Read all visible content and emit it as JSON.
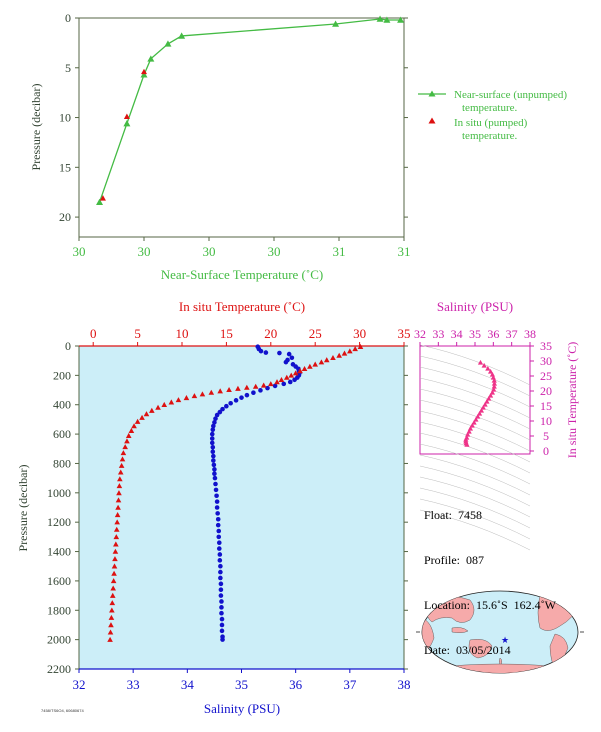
{
  "colors": {
    "green": "#44bb44",
    "red": "#dd1111",
    "blue": "#1111cc",
    "magenta": "#cc22aa",
    "pink": "#ee3388",
    "ocean": "#cceef8",
    "land": "#f6aaaa",
    "axis": "#556644"
  },
  "chart_data": [
    {
      "id": "near-surface",
      "type": "line",
      "xlabel": "Near-Surface Temperature (˚C)",
      "ylabel": "Pressure (decibar)",
      "xticks": [
        "30",
        "30",
        "30",
        "30",
        "31",
        "31"
      ],
      "xlim": [
        29.9,
        30.85
      ],
      "yticks": [
        0,
        5,
        10,
        15,
        20
      ],
      "ylim": [
        0,
        22
      ],
      "y_inverted": true,
      "series": [
        {
          "name": "Near-surface (unpumped) temperature.",
          "marker": "triangle",
          "points": [
            [
              29.96,
              18.5
            ],
            [
              30.04,
              10.6
            ],
            [
              30.09,
              5.7
            ],
            [
              30.11,
              4.1
            ],
            [
              30.16,
              2.6
            ],
            [
              30.2,
              1.8
            ],
            [
              30.65,
              0.6
            ],
            [
              30.78,
              0.1
            ],
            [
              30.8,
              0.2
            ],
            [
              30.84,
              0.2
            ]
          ]
        },
        {
          "name": "In situ (pumped) temperature.",
          "marker": "triangle",
          "points": [
            [
              29.97,
              18.1
            ],
            [
              30.04,
              9.9
            ],
            [
              30.09,
              5.4
            ]
          ]
        }
      ]
    },
    {
      "id": "profile",
      "type": "scatter",
      "top_xlabel": "In situ Temperature (˚C)",
      "bottom_xlabel": "Salinity (PSU)",
      "ylabel": "Pressure (decibar)",
      "temp_ticks": [
        0,
        5,
        10,
        15,
        20,
        25,
        30,
        35
      ],
      "temp_lim": [
        -1.6,
        35
      ],
      "sal_ticks": [
        32,
        33,
        34,
        35,
        36,
        37,
        38
      ],
      "sal_lim": [
        32,
        38
      ],
      "y_ticks": [
        0,
        200,
        400,
        600,
        800,
        1000,
        1200,
        1400,
        1600,
        1800,
        2000,
        2200
      ],
      "ylim": [
        0,
        2200
      ],
      "y_inverted": true,
      "series": [
        {
          "name": "In situ Temperature",
          "marker": "triangle",
          "points": [
            [
              30.1,
              5
            ],
            [
              29.5,
              20
            ],
            [
              28.9,
              35
            ],
            [
              28.3,
              50
            ],
            [
              27.7,
              65
            ],
            [
              27.0,
              80
            ],
            [
              26.3,
              95
            ],
            [
              25.7,
              110
            ],
            [
              25.0,
              125
            ],
            [
              24.4,
              140
            ],
            [
              23.8,
              155
            ],
            [
              23.3,
              170
            ],
            [
              22.8,
              185
            ],
            [
              22.3,
              200
            ],
            [
              21.8,
              215
            ],
            [
              21.2,
              230
            ],
            [
              20.7,
              245
            ],
            [
              20.0,
              258
            ],
            [
              19.2,
              268
            ],
            [
              18.3,
              276
            ],
            [
              17.3,
              283
            ],
            [
              16.3,
              290
            ],
            [
              15.3,
              298
            ],
            [
              14.3,
              307
            ],
            [
              13.3,
              317
            ],
            [
              12.3,
              328
            ],
            [
              11.4,
              340
            ],
            [
              10.5,
              353
            ],
            [
              9.6,
              367
            ],
            [
              8.8,
              383
            ],
            [
              8.0,
              400
            ],
            [
              7.3,
              419
            ],
            [
              6.6,
              440
            ],
            [
              6.0,
              463
            ],
            [
              5.5,
              488
            ],
            [
              5.0,
              515
            ],
            [
              4.6,
              545
            ],
            [
              4.3,
              577
            ],
            [
              4.0,
              611
            ],
            [
              3.8,
              648
            ],
            [
              3.6,
              687
            ],
            [
              3.4,
              728
            ],
            [
              3.3,
              771
            ],
            [
              3.2,
              815
            ],
            [
              3.1,
              860
            ],
            [
              3.0,
              906
            ],
            [
              2.95,
              953
            ],
            [
              2.9,
              1001
            ],
            [
              2.85,
              1050
            ],
            [
              2.8,
              1100
            ],
            [
              2.75,
              1150
            ],
            [
              2.7,
              1200
            ],
            [
              2.65,
              1250
            ],
            [
              2.6,
              1300
            ],
            [
              2.55,
              1350
            ],
            [
              2.5,
              1400
            ],
            [
              2.45,
              1450
            ],
            [
              2.4,
              1500
            ],
            [
              2.35,
              1550
            ],
            [
              2.3,
              1600
            ],
            [
              2.25,
              1650
            ],
            [
              2.2,
              1700
            ],
            [
              2.15,
              1750
            ],
            [
              2.1,
              1800
            ],
            [
              2.05,
              1850
            ],
            [
              2.0,
              1900
            ],
            [
              1.95,
              1950
            ],
            [
              1.9,
              2000
            ]
          ]
        },
        {
          "name": "Salinity",
          "marker": "circle",
          "points": [
            [
              35.3,
              5
            ],
            [
              35.32,
              20
            ],
            [
              35.36,
              35
            ],
            [
              35.45,
              45
            ],
            [
              35.7,
              48
            ],
            [
              35.88,
              55
            ],
            [
              35.93,
              80
            ],
            [
              35.85,
              95
            ],
            [
              35.82,
              110
            ],
            [
              35.95,
              125
            ],
            [
              36.0,
              140
            ],
            [
              36.05,
              155
            ],
            [
              36.06,
              170
            ],
            [
              36.07,
              185
            ],
            [
              36.06,
              200
            ],
            [
              36.03,
              215
            ],
            [
              35.98,
              230
            ],
            [
              35.9,
              245
            ],
            [
              35.78,
              258
            ],
            [
              35.62,
              272
            ],
            [
              35.48,
              287
            ],
            [
              35.35,
              302
            ],
            [
              35.22,
              318
            ],
            [
              35.1,
              335
            ],
            [
              35.0,
              352
            ],
            [
              34.9,
              370
            ],
            [
              34.8,
              390
            ],
            [
              34.72,
              410
            ],
            [
              34.65,
              430
            ],
            [
              34.6,
              450
            ],
            [
              34.55,
              470
            ],
            [
              34.52,
              495
            ],
            [
              34.5,
              520
            ],
            [
              34.48,
              545
            ],
            [
              34.47,
              570
            ],
            [
              34.46,
              600
            ],
            [
              34.46,
              630
            ],
            [
              34.46,
              660
            ],
            [
              34.47,
              690
            ],
            [
              34.47,
              720
            ],
            [
              34.48,
              750
            ],
            [
              34.48,
              780
            ],
            [
              34.49,
              810
            ],
            [
              34.5,
              840
            ],
            [
              34.5,
              870
            ],
            [
              34.51,
              900
            ],
            [
              34.52,
              940
            ],
            [
              34.53,
              980
            ],
            [
              34.54,
              1020
            ],
            [
              34.55,
              1060
            ],
            [
              34.55,
              1100
            ],
            [
              34.56,
              1140
            ],
            [
              34.57,
              1180
            ],
            [
              34.57,
              1220
            ],
            [
              34.58,
              1260
            ],
            [
              34.58,
              1300
            ],
            [
              34.59,
              1340
            ],
            [
              34.59,
              1380
            ],
            [
              34.6,
              1420
            ],
            [
              34.6,
              1460
            ],
            [
              34.61,
              1500
            ],
            [
              34.61,
              1540
            ],
            [
              34.61,
              1580
            ],
            [
              34.62,
              1620
            ],
            [
              34.62,
              1660
            ],
            [
              34.62,
              1700
            ],
            [
              34.63,
              1740
            ],
            [
              34.63,
              1780
            ],
            [
              34.63,
              1820
            ],
            [
              34.64,
              1860
            ],
            [
              34.64,
              1900
            ],
            [
              34.64,
              1940
            ],
            [
              34.65,
              1980
            ],
            [
              34.65,
              2000
            ]
          ]
        }
      ]
    },
    {
      "id": "ts",
      "type": "scatter",
      "top_xlabel": "Salinity (PSU)",
      "right_ylabel": "In situ Temperature (˚C)",
      "sal_ticks": [
        32,
        33,
        34,
        35,
        36,
        37,
        38
      ],
      "sal_lim": [
        32,
        38
      ],
      "temp_ticks": [
        0,
        5,
        10,
        15,
        20,
        25,
        30,
        35
      ],
      "temp_lim": [
        -1,
        35
      ],
      "series": [
        {
          "name": "T-S",
          "marker": "triangle",
          "points": [
            [
              35.3,
              29.5
            ],
            [
              35.5,
              28.5
            ],
            [
              35.7,
              27.5
            ],
            [
              35.85,
              26.5
            ],
            [
              35.95,
              25.5
            ],
            [
              36.0,
              24.5
            ],
            [
              36.05,
              23.5
            ],
            [
              36.06,
              22.5
            ],
            [
              36.05,
              21.5
            ],
            [
              36.02,
              20.5
            ],
            [
              35.95,
              19.5
            ],
            [
              35.85,
              18.5
            ],
            [
              35.75,
              17.5
            ],
            [
              35.65,
              16.5
            ],
            [
              35.55,
              15.5
            ],
            [
              35.45,
              14.5
            ],
            [
              35.35,
              13.5
            ],
            [
              35.25,
              12.5
            ],
            [
              35.15,
              11.5
            ],
            [
              35.05,
              10.5
            ],
            [
              34.95,
              9.5
            ],
            [
              34.85,
              8.5
            ],
            [
              34.75,
              7.5
            ],
            [
              34.68,
              6.5
            ],
            [
              34.6,
              5.5
            ],
            [
              34.55,
              4.5
            ],
            [
              34.5,
              3.8
            ],
            [
              34.5,
              3.2
            ],
            [
              34.52,
              2.6
            ],
            [
              34.56,
              2.1
            ]
          ]
        }
      ]
    }
  ],
  "info": {
    "float_line": "Float:  7458",
    "profile_line": "Profile:  087",
    "location_line": "Location:  15.6˚S  162.4˚W",
    "date_line": "Date:  03/05/2014"
  },
  "footer_code": "7458/TS6O4, 60680674",
  "map": {
    "marker_icon": "star-icon"
  }
}
